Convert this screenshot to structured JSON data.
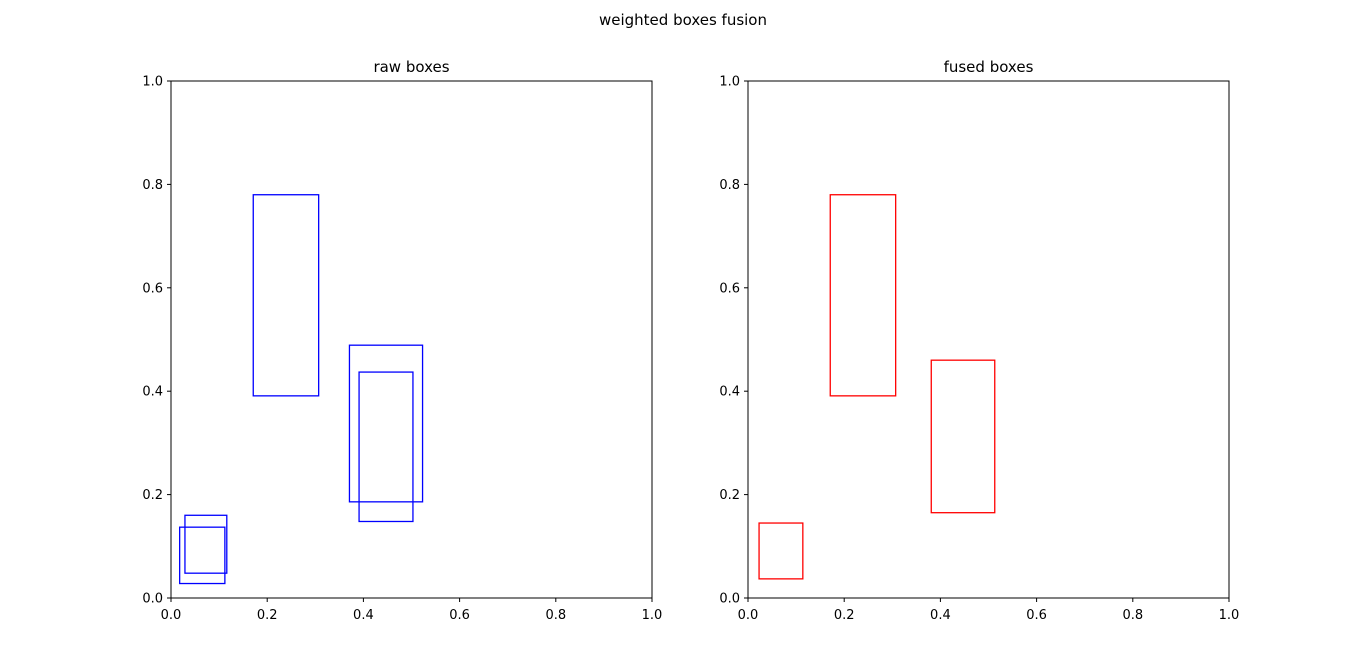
{
  "figure": {
    "suptitle": "weighted boxes fusion"
  },
  "chart_data": [
    {
      "type": "rectangles",
      "title": "raw boxes",
      "xlabel": "",
      "ylabel": "",
      "xlim": [
        0.0,
        1.0
      ],
      "ylim": [
        0.0,
        1.0
      ],
      "xticks": [
        0.0,
        0.2,
        0.4,
        0.6,
        0.8,
        1.0
      ],
      "yticks": [
        0.0,
        0.2,
        0.4,
        0.6,
        0.8,
        1.0
      ],
      "xtick_labels": [
        "0.0",
        "0.2",
        "0.4",
        "0.6",
        "0.8",
        "1.0"
      ],
      "ytick_labels": [
        "0.0",
        "0.2",
        "0.4",
        "0.6",
        "0.8",
        "1.0"
      ],
      "grid": false,
      "edge_color": "#0000ff",
      "boxes": [
        {
          "x0": 0.018,
          "y0": 0.028,
          "x1": 0.112,
          "y1": 0.137
        },
        {
          "x0": 0.029,
          "y0": 0.048,
          "x1": 0.116,
          "y1": 0.16
        },
        {
          "x0": 0.171,
          "y0": 0.391,
          "x1": 0.307,
          "y1": 0.78
        },
        {
          "x0": 0.371,
          "y0": 0.186,
          "x1": 0.523,
          "y1": 0.489
        },
        {
          "x0": 0.391,
          "y0": 0.148,
          "x1": 0.503,
          "y1": 0.437
        }
      ]
    },
    {
      "type": "rectangles",
      "title": "fused boxes",
      "xlabel": "",
      "ylabel": "",
      "xlim": [
        0.0,
        1.0
      ],
      "ylim": [
        0.0,
        1.0
      ],
      "xticks": [
        0.0,
        0.2,
        0.4,
        0.6,
        0.8,
        1.0
      ],
      "yticks": [
        0.0,
        0.2,
        0.4,
        0.6,
        0.8,
        1.0
      ],
      "xtick_labels": [
        "0.0",
        "0.2",
        "0.4",
        "0.6",
        "0.8",
        "1.0"
      ],
      "ytick_labels": [
        "0.0",
        "0.2",
        "0.4",
        "0.6",
        "0.8",
        "1.0"
      ],
      "grid": false,
      "edge_color": "#ff0000",
      "boxes": [
        {
          "x0": 0.023,
          "y0": 0.037,
          "x1": 0.114,
          "y1": 0.145
        },
        {
          "x0": 0.171,
          "y0": 0.391,
          "x1": 0.307,
          "y1": 0.78
        },
        {
          "x0": 0.381,
          "y0": 0.165,
          "x1": 0.513,
          "y1": 0.46
        }
      ]
    }
  ]
}
